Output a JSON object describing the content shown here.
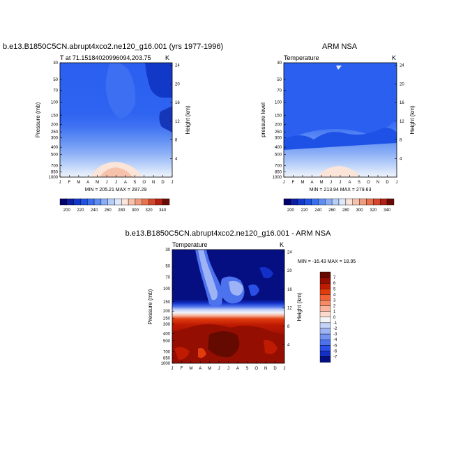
{
  "chart_data": [
    {
      "type": "heatmap",
      "title": "b.e13.B1850C5CN.abrupt4xco2.ne120_g16.001 (yrs 1977-1996)",
      "left_label": "T at 71.15184020996094,203.75",
      "right_label": "K",
      "ylabel": "Pressure (mb)",
      "ylabel_right": "Height (km)",
      "x_ticks": [
        "J",
        "F",
        "M",
        "A",
        "M",
        "J",
        "J",
        "A",
        "S",
        "O",
        "N",
        "D",
        "J"
      ],
      "y_ticks": [
        "30",
        "50",
        "70",
        "100",
        "150",
        "200",
        "250",
        "300",
        "400",
        "500",
        "700",
        "850",
        "1000"
      ],
      "y_ticks_right": [
        "24",
        "20",
        "16",
        "12",
        "8",
        "4"
      ],
      "minmax": "MIN = 205.21  MAX = 287.29",
      "colorbar": {
        "ticks": [
          "200",
          "220",
          "240",
          "260",
          "280",
          "300",
          "320",
          "340"
        ]
      }
    },
    {
      "type": "heatmap",
      "title": "ARM NSA",
      "left_label": "Temperature",
      "right_label": "K",
      "ylabel": "pressure level",
      "ylabel_right": "Height (km)",
      "x_ticks": [
        "J",
        "F",
        "M",
        "A",
        "M",
        "J",
        "J",
        "A",
        "S",
        "O",
        "N",
        "D",
        "J"
      ],
      "y_ticks": [
        "30",
        "50",
        "70",
        "100",
        "150",
        "200",
        "250",
        "300",
        "400",
        "500",
        "700",
        "850",
        "1000"
      ],
      "y_ticks_right": [
        "24",
        "20",
        "16",
        "12",
        "8",
        "4"
      ],
      "minmax": "MIN = 213.94  MAX = 279.63",
      "colorbar": {
        "ticks": [
          "200",
          "220",
          "240",
          "260",
          "280",
          "300",
          "320",
          "340"
        ]
      }
    },
    {
      "type": "heatmap",
      "title": "b.e13.B1850C5CN.abrupt4xco2.ne120_g16.001 - ARM NSA",
      "left_label": "Temperature",
      "right_label": "K",
      "ylabel": "Pressure (mb)",
      "ylabel_right": "Height (km)",
      "x_ticks": [
        "J",
        "F",
        "M",
        "A",
        "M",
        "J",
        "J",
        "A",
        "S",
        "O",
        "N",
        "D",
        "J"
      ],
      "y_ticks": [
        "30",
        "50",
        "70",
        "100",
        "150",
        "200",
        "250",
        "300",
        "400",
        "500",
        "700",
        "850",
        "1000"
      ],
      "y_ticks_right": [
        "24",
        "20",
        "16",
        "12",
        "8",
        "4"
      ],
      "minmax": "MIN = -16.43  MAX =  18.95",
      "colorbar": {
        "ticks": [
          "7",
          "6",
          "5",
          "4",
          "3",
          "2",
          "1",
          "0",
          "-1",
          "-2",
          "-3",
          "-4",
          "-5",
          "-6",
          "-7"
        ]
      }
    }
  ],
  "palettes": {
    "absolute": [
      "#03006b",
      "#0b1ea6",
      "#1238c8",
      "#1e52e6",
      "#3a6ef0",
      "#5d8cf3",
      "#88acf6",
      "#b5cdf8",
      "#dde8fb",
      "#fbe4d8",
      "#f7c2ab",
      "#f29c7e",
      "#e8734f",
      "#d3472c",
      "#b02015",
      "#6b0a05"
    ],
    "difference": [
      "#650a00",
      "#950e02",
      "#bf1b03",
      "#e03c0e",
      "#f26236",
      "#f58a64",
      "#f8b49d",
      "#fbd9cc",
      "#f3f4f8",
      "#c5d3f8",
      "#9db3f5",
      "#7492f1",
      "#4d72ee",
      "#2a4fe6",
      "#1230c6",
      "#050f82"
    ]
  }
}
